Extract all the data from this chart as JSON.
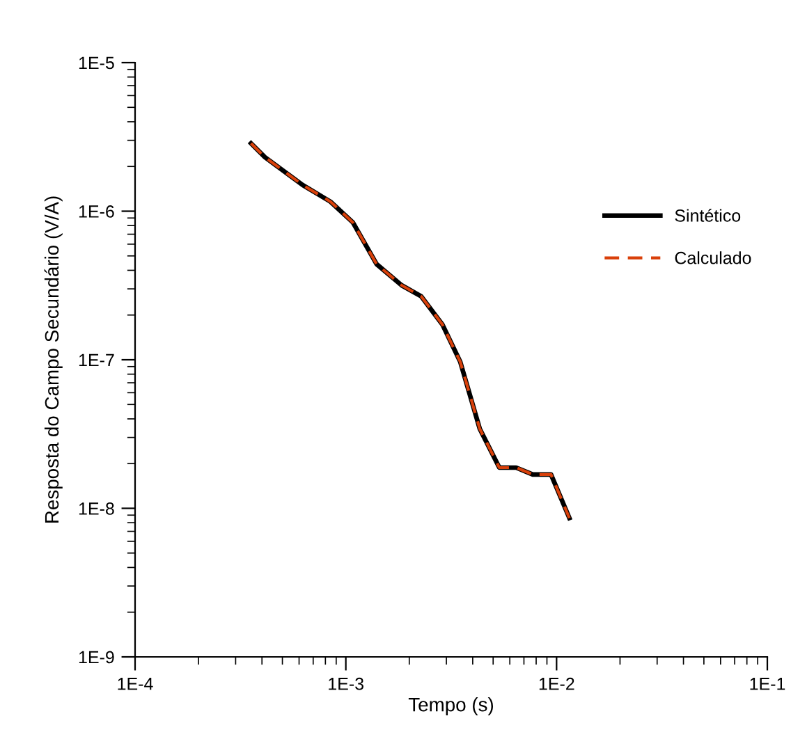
{
  "chart_data": {
    "type": "line",
    "xlabel": "Tempo (s)",
    "ylabel": "Resposta do Campo Secundário (V/A)",
    "log": "xy",
    "grid": false,
    "legend": "top right",
    "marker": "none",
    "x": [
      0.000355,
      0.000413,
      0.000624,
      0.000845,
      0.00108,
      0.0014,
      0.00184,
      0.00228,
      0.00287,
      0.00349,
      0.00432,
      0.00535,
      0.00643,
      0.00771,
      0.00941,
      0.0115
    ],
    "series": [
      {
        "name": "Sintético",
        "color": "#000000",
        "line_style": "solid",
        "values": [
          2.86e-06,
          2.31e-06,
          1.5e-06,
          1.16e-06,
          8.4e-07,
          4.4e-07,
          3.17e-07,
          2.67e-07,
          1.73e-07,
          9.7e-08,
          3.43e-08,
          1.88e-08,
          1.88e-08,
          1.69e-08,
          1.69e-08,
          8.6e-09
        ]
      },
      {
        "name": "Calculado",
        "color": "#d9400a",
        "line_style": "dashed",
        "values": [
          2.86e-06,
          2.31e-06,
          1.5e-06,
          1.16e-06,
          8.4e-07,
          4.4e-07,
          3.17e-07,
          2.67e-07,
          1.73e-07,
          9.7e-08,
          3.43e-08,
          1.88e-08,
          1.88e-08,
          1.69e-08,
          1.69e-08,
          8.6e-09
        ]
      }
    ],
    "xlim": [
      0.0001,
      0.1
    ],
    "ylim": [
      1e-09,
      1e-05
    ],
    "xticks": [
      {
        "value": 0.0001,
        "label": "1E-4"
      },
      {
        "value": 0.001,
        "label": "1E-3"
      },
      {
        "value": 0.01,
        "label": "1E-2"
      },
      {
        "value": 0.1,
        "label": "1E-1"
      }
    ],
    "yticks": [
      {
        "value": 1e-09,
        "label": "1E-9"
      },
      {
        "value": 1e-08,
        "label": "1E-8"
      },
      {
        "value": 1e-07,
        "label": "1E-7"
      },
      {
        "value": 1e-06,
        "label": "1E-6"
      },
      {
        "value": 1e-05,
        "label": "1E-5"
      }
    ]
  }
}
